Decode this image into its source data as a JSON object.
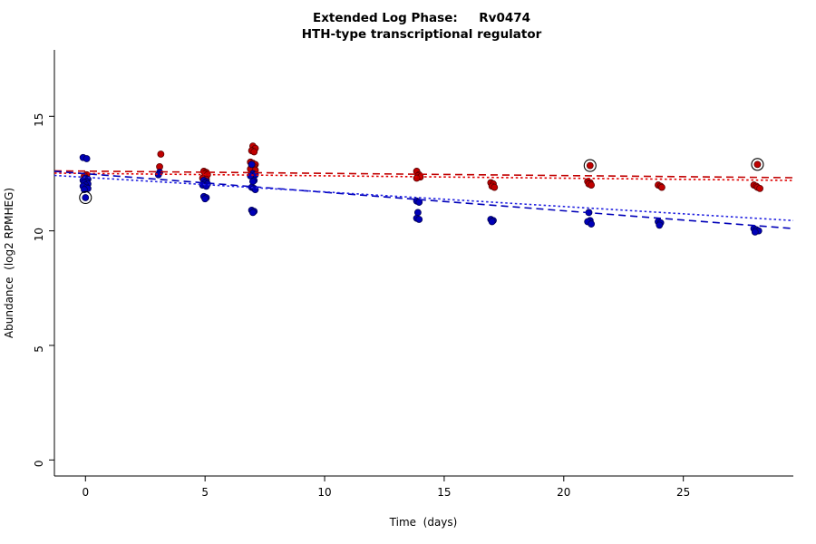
{
  "chart_data": {
    "type": "scatter",
    "title_line1": "Extended Log Phase:     Rv0474",
    "title_line2": "HTH-type transcriptional regulator",
    "xlabel": "Time  (days)",
    "ylabel": "Abundance  (log2 RPMHEG)",
    "xlim": [
      -1.3,
      29.6
    ],
    "ylim": [
      -0.7,
      17.9
    ],
    "xticks": [
      0,
      5,
      10,
      15,
      20,
      25
    ],
    "yticks": [
      0,
      5,
      10,
      15
    ],
    "grid": false,
    "legend": "none",
    "series": [
      {
        "name": "red",
        "color": "#c00000",
        "stroke": "#5a0000",
        "points": [
          [
            0.05,
            12.45
          ],
          [
            -0.05,
            12.4
          ],
          [
            3.15,
            13.35
          ],
          [
            3.1,
            12.8
          ],
          [
            4.95,
            12.6
          ],
          [
            5.05,
            12.55
          ],
          [
            5.0,
            12.5
          ],
          [
            5.1,
            12.45
          ],
          [
            4.9,
            12.3
          ],
          [
            5.05,
            12.25
          ],
          [
            7.0,
            13.7
          ],
          [
            7.1,
            13.6
          ],
          [
            6.95,
            13.5
          ],
          [
            7.05,
            13.45
          ],
          [
            6.9,
            13.0
          ],
          [
            7.0,
            12.95
          ],
          [
            7.1,
            12.9
          ],
          [
            6.95,
            12.85
          ],
          [
            7.05,
            12.8
          ],
          [
            7.0,
            12.75
          ],
          [
            6.9,
            12.7
          ],
          [
            7.1,
            12.65
          ],
          [
            13.85,
            12.6
          ],
          [
            13.95,
            12.45
          ],
          [
            13.9,
            12.4
          ],
          [
            14.0,
            12.35
          ],
          [
            13.85,
            12.3
          ],
          [
            16.95,
            12.1
          ],
          [
            17.05,
            12.05
          ],
          [
            17.0,
            11.95
          ],
          [
            17.1,
            11.9
          ],
          [
            21.1,
            12.85
          ],
          [
            21.0,
            12.15
          ],
          [
            21.1,
            12.1
          ],
          [
            21.05,
            12.05
          ],
          [
            21.15,
            12.0
          ],
          [
            23.95,
            12.0
          ],
          [
            24.05,
            11.95
          ],
          [
            24.1,
            11.9
          ],
          [
            28.1,
            12.9
          ],
          [
            27.95,
            12.0
          ],
          [
            28.05,
            11.95
          ],
          [
            28.1,
            11.9
          ],
          [
            28.2,
            11.85
          ]
        ],
        "outliers": [
          [
            21.1,
            12.85
          ],
          [
            28.1,
            12.9
          ]
        ]
      },
      {
        "name": "blue",
        "color": "#0000b8",
        "stroke": "#000055",
        "points": [
          [
            -0.1,
            13.2
          ],
          [
            0.05,
            13.15
          ],
          [
            0.0,
            12.3
          ],
          [
            0.1,
            12.25
          ],
          [
            -0.1,
            12.2
          ],
          [
            0.05,
            12.15
          ],
          [
            -0.05,
            12.1
          ],
          [
            0.1,
            12.05
          ],
          [
            0.0,
            12.0
          ],
          [
            -0.1,
            11.95
          ],
          [
            0.05,
            11.9
          ],
          [
            0.1,
            11.85
          ],
          [
            -0.05,
            11.8
          ],
          [
            0.0,
            11.45
          ],
          [
            3.1,
            12.55
          ],
          [
            3.05,
            12.45
          ],
          [
            4.95,
            12.2
          ],
          [
            5.05,
            12.15
          ],
          [
            5.0,
            12.1
          ],
          [
            5.1,
            12.05
          ],
          [
            4.9,
            12.0
          ],
          [
            5.05,
            11.95
          ],
          [
            4.95,
            11.5
          ],
          [
            5.05,
            11.45
          ],
          [
            5.0,
            11.4
          ],
          [
            6.95,
            12.9
          ],
          [
            7.0,
            12.5
          ],
          [
            7.1,
            12.45
          ],
          [
            6.9,
            12.4
          ],
          [
            7.05,
            12.2
          ],
          [
            7.0,
            12.15
          ],
          [
            6.95,
            11.9
          ],
          [
            7.05,
            11.85
          ],
          [
            7.1,
            11.8
          ],
          [
            6.95,
            10.9
          ],
          [
            7.05,
            10.85
          ],
          [
            7.0,
            10.8
          ],
          [
            13.85,
            11.3
          ],
          [
            13.95,
            11.25
          ],
          [
            13.9,
            10.8
          ],
          [
            13.85,
            10.55
          ],
          [
            13.95,
            10.5
          ],
          [
            16.95,
            10.5
          ],
          [
            17.05,
            10.45
          ],
          [
            17.0,
            10.4
          ],
          [
            21.05,
            10.8
          ],
          [
            21.1,
            10.45
          ],
          [
            21.0,
            10.4
          ],
          [
            21.15,
            10.3
          ],
          [
            23.95,
            10.4
          ],
          [
            24.05,
            10.35
          ],
          [
            24.0,
            10.25
          ],
          [
            27.95,
            10.1
          ],
          [
            28.05,
            10.05
          ],
          [
            28.15,
            10.0
          ],
          [
            28.0,
            9.95
          ]
        ],
        "outliers": [
          [
            0.0,
            11.45
          ]
        ]
      }
    ],
    "trendlines": [
      {
        "name": "red-dashed-fit",
        "color": "#c00000",
        "style": "dashed",
        "x0": -1.3,
        "y0": 12.62,
        "x1": 29.6,
        "y1": 12.32
      },
      {
        "name": "red-dotted-fit",
        "color": "#e00000",
        "style": "dotted",
        "x0": -1.3,
        "y0": 12.52,
        "x1": 29.6,
        "y1": 12.2
      },
      {
        "name": "blue-dashed-fit",
        "color": "#0000b8",
        "style": "dashed",
        "x0": -1.3,
        "y0": 12.6,
        "x1": 29.6,
        "y1": 10.1
      },
      {
        "name": "blue-dotted-fit",
        "color": "#2222e0",
        "style": "dotted",
        "x0": -1.3,
        "y0": 12.42,
        "x1": 29.6,
        "y1": 10.45
      }
    ]
  }
}
